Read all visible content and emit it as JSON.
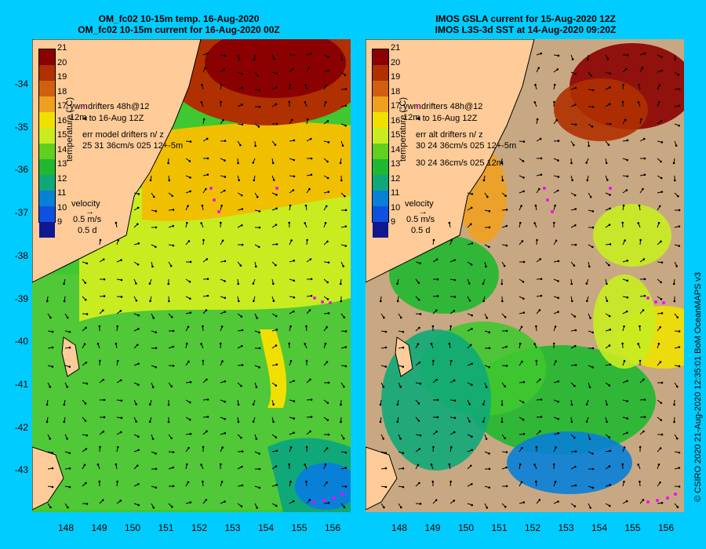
{
  "left": {
    "title1": "OM_fc02 10-15m temp. 16-Aug-2020",
    "title2": "OM_fc02 10-15m current for 16-Aug-2020 00Z",
    "drifters1": "drifters 48h@12",
    "drifters2": "to 16-Aug 12Z",
    "err1": "err model drifters n/ z",
    "err2": "25 31 36cm/s 025 12+-5m",
    "err3": ""
  },
  "right": {
    "title1": "IMOS GSLA current for 15-Aug-2020 12Z",
    "title2": "IMOS L3S-3d SST at 14-Aug-2020 09:20Z",
    "drifters1": "drifters 48h@12",
    "drifters2": "to 16-Aug 12Z",
    "err1": "err alt drifters n/ z",
    "err2": "30 24 36cm/s 025 12+-5m",
    "err3": "30 24 36cm/s 025 12m"
  },
  "colorbar": {
    "ticks": [
      "21",
      "20",
      "19",
      "18",
      "17",
      "16",
      "15",
      "14",
      "13",
      "12",
      "11",
      "10",
      "9"
    ],
    "colors": [
      "#8b0000",
      "#b03000",
      "#d06010",
      "#f0a020",
      "#f0e000",
      "#c8ec20",
      "#60d020",
      "#20b830",
      "#10a878",
      "#0880d8",
      "#1050e0",
      "#101890"
    ],
    "label": "temperature (°C)",
    "ywm_marker": "ywm",
    "ywm_marker2": "12m"
  },
  "velocity": {
    "label": "velocity",
    "speed": "0.5 m/s",
    "duration": "0.5 d"
  },
  "lat_labels": [
    "-34",
    "-35",
    "-36",
    "-37",
    "-38",
    "-39",
    "-40",
    "-41",
    "-42",
    "-43"
  ],
  "lon_labels": [
    "148",
    "149",
    "150",
    "151",
    "152",
    "153",
    "154",
    "155",
    "156"
  ],
  "credit": "© CSIRO 2020   21-Aug-2020 12:35:01 BoM OceanMAPS v3",
  "colors": {
    "background": "#00ccff",
    "land": "#ffcc99",
    "missing_sst": "#c8a882",
    "drifters": "#ff00ff"
  }
}
